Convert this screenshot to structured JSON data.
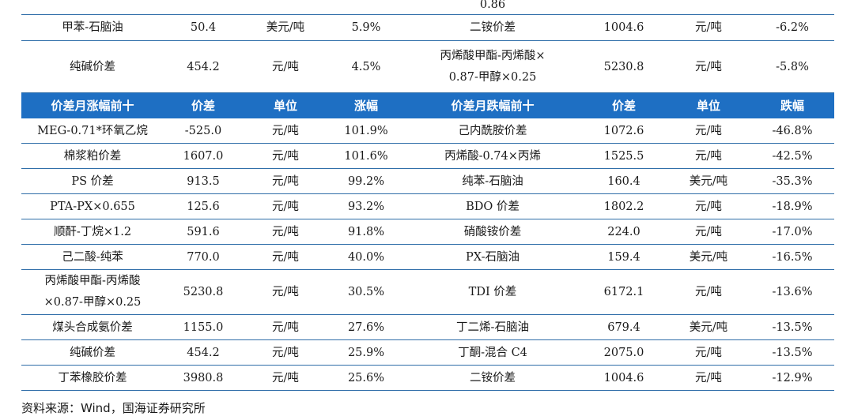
{
  "top_rows": {
    "partial": {
      "continued_text": "0.86"
    },
    "rows": [
      {
        "left_name": "甲苯-石脑油",
        "left_price": "50.4",
        "left_unit": "美元/吨",
        "left_change": "5.9%",
        "right_name": "二铵价差",
        "right_price": "1004.6",
        "right_unit": "元/吨",
        "right_change": "-6.2%"
      },
      {
        "left_name": "纯碱价差",
        "left_price": "454.2",
        "left_unit": "元/吨",
        "left_change": "4.5%",
        "right_name_line1": "丙烯酸甲酯-丙烯酸×",
        "right_name_line2": "0.87-甲醇×0.25",
        "right_price": "5230.8",
        "right_unit": "元/吨",
        "right_change": "-5.8%"
      }
    ]
  },
  "header": {
    "left_title": "价差月涨幅前十",
    "left_price": "价差",
    "left_unit": "单位",
    "left_change": "涨幅",
    "right_title": "价差月跌幅前十",
    "right_price": "价差",
    "right_unit": "单位",
    "right_change": "跌幅"
  },
  "rows": [
    {
      "left_name": "MEG-0.71*环氧乙烷",
      "left_price": "-525.0",
      "left_unit": "元/吨",
      "left_change": "101.9%",
      "right_name": "己内酰胺价差",
      "right_price": "1072.6",
      "right_unit": "元/吨",
      "right_change": "-46.8%"
    },
    {
      "left_name": "棉浆粕价差",
      "left_price": "1607.0",
      "left_unit": "元/吨",
      "left_change": "101.6%",
      "right_name": "丙烯酸-0.74×丙烯",
      "right_price": "1525.5",
      "right_unit": "元/吨",
      "right_change": "-42.5%"
    },
    {
      "left_name": "PS 价差",
      "left_price": "913.5",
      "left_unit": "元/吨",
      "left_change": "99.2%",
      "right_name": "纯苯-石脑油",
      "right_price": "160.4",
      "right_unit": "美元/吨",
      "right_change": "-35.3%"
    },
    {
      "left_name": "PTA-PX×0.655",
      "left_price": "125.6",
      "left_unit": "元/吨",
      "left_change": "93.2%",
      "right_name": "BDO 价差",
      "right_price": "1802.2",
      "right_unit": "元/吨",
      "right_change": "-18.9%"
    },
    {
      "left_name": "顺酐-丁烷×1.2",
      "left_price": "591.6",
      "left_unit": "元/吨",
      "left_change": "91.8%",
      "right_name": "硝酸铵价差",
      "right_price": "224.0",
      "right_unit": "元/吨",
      "right_change": "-17.0%"
    },
    {
      "left_name": "己二酸-纯苯",
      "left_price": "770.0",
      "left_unit": "元/吨",
      "left_change": "40.0%",
      "right_name": "PX-石脑油",
      "right_price": "159.4",
      "right_unit": "美元/吨",
      "right_change": "-16.5%"
    },
    {
      "left_name_line1": "丙烯酸甲酯-丙烯酸",
      "left_name_line2": "×0.87-甲醇×0.25",
      "left_price": "5230.8",
      "left_unit": "元/吨",
      "left_change": "30.5%",
      "right_name": "TDI 价差",
      "right_price": "6172.1",
      "right_unit": "元/吨",
      "right_change": "-13.6%"
    },
    {
      "left_name": "煤头合成氨价差",
      "left_price": "1155.0",
      "left_unit": "元/吨",
      "left_change": "27.6%",
      "right_name": "丁二烯-石脑油",
      "right_price": "679.4",
      "right_unit": "美元/吨",
      "right_change": "-13.5%"
    },
    {
      "left_name": "纯碱价差",
      "left_price": "454.2",
      "left_unit": "元/吨",
      "left_change": "25.9%",
      "right_name": "丁酮-混合 C4",
      "right_price": "2075.0",
      "right_unit": "元/吨",
      "right_change": "-13.5%"
    },
    {
      "left_name": "丁苯橡胶价差",
      "left_price": "3980.8",
      "left_unit": "元/吨",
      "left_change": "25.6%",
      "right_name": "二铵价差",
      "right_price": "1004.6",
      "right_unit": "元/吨",
      "right_change": "-12.9%"
    }
  ],
  "source": "资料来源：Wind，国海证券研究所",
  "colors": {
    "header_bg": "#1e6fc3",
    "header_text": "#ffffff",
    "rule": "#2e6da8"
  }
}
